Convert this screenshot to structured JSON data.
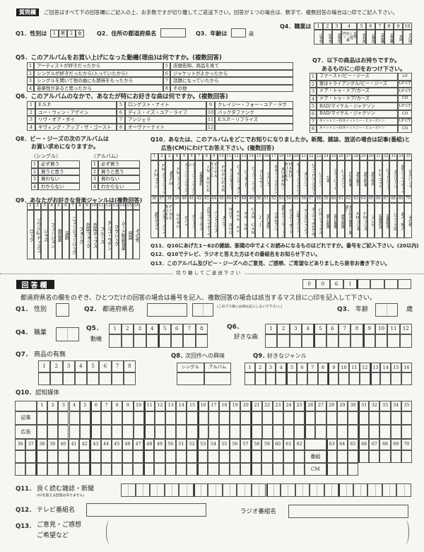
{
  "questions": {
    "header_label": "質問欄",
    "instruction": "ご回答はすべて下の回答欄にご記入の上、お手数ですが切り離してご返送下さい。回答が１つの場合は、数字で、複数回答の場合は○印でご記入下さい。",
    "q1": {
      "label": "Q1．性別は",
      "options": [
        "1",
        "男",
        "2",
        "女"
      ]
    },
    "q2": {
      "label": "Q2．住所の都道府県名"
    },
    "q3": {
      "label": "Q3．年齢は",
      "unit": "歳"
    },
    "q4": {
      "label": "Q4．職業は",
      "options": [
        {
          "n": "1",
          "t": "小学生"
        },
        {
          "n": "2",
          "t": "中学生"
        },
        {
          "n": "3",
          "t": "高校生"
        },
        {
          "n": "4",
          "t": "大学(短大・専門)"
        },
        {
          "n": "5",
          "t": "会社員"
        },
        {
          "n": "6",
          "t": "公務員"
        },
        {
          "n": "7",
          "t": "自由業"
        },
        {
          "n": "8",
          "t": "自営業"
        },
        {
          "n": "9",
          "t": "主婦"
        },
        {
          "n": "10",
          "t": "その他"
        }
      ]
    },
    "q5": {
      "title": "Q5．このアルバムをお買い上げになった動機(理由)は何ですか。(複数回答)",
      "items": [
        {
          "n": "1",
          "t": "アーティストが好きだったから"
        },
        {
          "n": "2",
          "t": "シングルが好きだったから(入っていたから)"
        },
        {
          "n": "3",
          "t": "シングルを聞いて他の曲にも期待をもったから"
        },
        {
          "n": "4",
          "t": "音楽性があると思ったから"
        },
        {
          "n": "5",
          "t": "店頭告知、商品を見て"
        },
        {
          "n": "6",
          "t": "ジャケットがよかったから"
        },
        {
          "n": "7",
          "t": "話題になっていたから"
        },
        {
          "n": "8",
          "t": "その他"
        }
      ]
    },
    "q6": {
      "title": "Q6．このアルバムのなかで、あなたが特にお好きな曲は何ですか。(複数回答)",
      "items": [
        {
          "n": "1",
          "t": "E.S.P."
        },
        {
          "n": "2",
          "t": "ユー・ウィン・アゲイン"
        },
        {
          "n": "3",
          "t": "リヴ・オア・ダイ"
        },
        {
          "n": "4",
          "t": "ギヴィング・アップ・ザ・ゴースト"
        },
        {
          "n": "5",
          "t": "ロンゲスト・ナイト"
        },
        {
          "n": "6",
          "t": "ディス・イズ・ユア・ライフ"
        },
        {
          "n": "7",
          "t": "アンジェラ"
        },
        {
          "n": "8",
          "t": "オーヴァーナイト"
        },
        {
          "n": "9",
          "t": "クレイジー・フォー・ユア・ラヴ"
        },
        {
          "n": "10",
          "t": "バックタファンク"
        },
        {
          "n": "11",
          "t": "E.S.P.－リプライズ"
        },
        {
          "n": "12",
          "t": ""
        }
      ]
    },
    "q7": {
      "title1": "Q7．以下の商品はお持ちですか。",
      "title2": "あるものに○印をおつけ下さい。",
      "items": [
        {
          "n": "1",
          "t": "ファースト/ビー・ジーズ",
          "f": "LP"
        },
        {
          "n": "2",
          "t": "愛はトライアングル/ビー・ジーズ",
          "f": "LP·CT"
        },
        {
          "n": "3",
          "t": "ドア・トゥ・ドア/カーズ",
          "f": "LP·CT"
        },
        {
          "n": "4",
          "t": "ドア・トゥ・ドア/カーズ",
          "f": "CD"
        },
        {
          "n": "5",
          "t": "BAD/マイケル・ジャクソン",
          "f": "LP·CT"
        },
        {
          "n": "6",
          "t": "BAD/マイケル・ジャクソン",
          "f": "CD"
        },
        {
          "n": "7",
          "t": "ホイットニーII/ホイットニー・ヒューストン",
          "f": "LP·CT"
        },
        {
          "n": "8",
          "t": "ホイットニーII/ホイットニー・ヒューストン",
          "f": "CD"
        }
      ]
    },
    "q8": {
      "title1": "Q8．ビー・ジーズの次のアルバムは",
      "title2": "お買い求めになりますか。",
      "single_label": "〈シングル〉",
      "album_label": "〈アルバム〉",
      "options": [
        {
          "n": "1",
          "t": "必ず買う"
        },
        {
          "n": "2",
          "t": "買うと思う"
        },
        {
          "n": "3",
          "t": "買わない"
        },
        {
          "n": "4",
          "t": "わからない"
        }
      ]
    },
    "q9": {
      "title": "Q9．あなたがお好きな音楽ジャンルは(複数回答)",
      "genres": [
        {
          "n": "1",
          "t": "ロック"
        },
        {
          "n": "2",
          "t": "ソウル&ディスコ"
        },
        {
          "n": "3",
          "t": "ジャズ"
        },
        {
          "n": "4",
          "t": "フュージョン"
        },
        {
          "n": "5",
          "t": "歌謡曲"
        },
        {
          "n": "6",
          "t": "演歌"
        },
        {
          "n": "7",
          "t": "ニューミュージック"
        },
        {
          "n": "8",
          "t": "フォーク"
        },
        {
          "n": "9",
          "t": "外国フォーク"
        },
        {
          "n": "10",
          "t": "外国ポップス"
        },
        {
          "n": "11",
          "t": "ブルース"
        },
        {
          "n": "12",
          "t": "タンゴ・ラテン"
        },
        {
          "n": "13",
          "t": "クラシック"
        },
        {
          "n": "14",
          "t": "ムード映画音楽"
        },
        {
          "n": "15",
          "t": "民謡"
        },
        {
          "n": "16",
          "t": "その他"
        }
      ]
    },
    "q10": {
      "title1": "Q10．あなたは、このアルバムをどこでお知りになりましたか。新聞、雑誌、放送の場合は記事(番組)と",
      "title2": "広告(CM)にわけてお答え下さい。(複数回答)",
      "media": [
        {
          "n": "1",
          "t": "FMファン"
        },
        {
          "n": "2",
          "t": "FMステーション"
        },
        {
          "n": "3",
          "t": "週刊FM"
        },
        {
          "n": "4",
          "t": "FMレコパル"
        },
        {
          "n": "5",
          "t": "ミュージックライフ"
        },
        {
          "n": "6",
          "t": "ミュージックマガジン"
        },
        {
          "n": "7",
          "t": "音楽専科"
        },
        {
          "n": "8",
          "t": "IN ROCK"
        },
        {
          "n": "9",
          "t": "VIVA ROCK"
        },
        {
          "n": "10",
          "t": "POPGEAR"
        },
        {
          "n": "11",
          "t": "ヤングギター"
        },
        {
          "n": "12",
          "t": "ロッキング・オン"
        },
        {
          "n": "13",
          "t": "ロッキンf"
        },
        {
          "n": "14",
          "t": "ロック・ショウ"
        },
        {
          "n": "15",
          "t": "プレイヤー"
        },
        {
          "n": "16",
          "t": "アドリブ"
        },
        {
          "n": "17",
          "t": "ギター・マガジン"
        },
        {
          "n": "18",
          "t": "BURRN!"
        },
        {
          "n": "19",
          "t": "HARD ROCKS"
        },
        {
          "n": "20",
          "t": "キーボードマガジン"
        },
        {
          "n": "21",
          "t": "オリコン"
        },
        {
          "n": "22",
          "t": "レコードマンスリー"
        },
        {
          "n": "23",
          "t": "レコジン"
        },
        {
          "n": "24",
          "t": "ぴあ"
        },
        {
          "n": "25",
          "t": "シティロード"
        },
        {
          "n": "26",
          "t": "Lマガジン"
        },
        {
          "n": "27",
          "t": "月刊明星"
        },
        {
          "n": "28",
          "t": "週刊朝日"
        },
        {
          "n": "29",
          "t": "週刊明星"
        },
        {
          "n": "30",
          "t": "週刊現代"
        },
        {
          "n": "31",
          "t": "TVガイド"
        },
        {
          "n": "32",
          "t": "ロードショー"
        },
        {
          "n": "33",
          "t": "スクリーン"
        },
        {
          "n": "34",
          "t": "週刊プレイボーイ"
        },
        {
          "n": "35",
          "t": "平凡パンチ"
        },
        {
          "n": "36",
          "t": "週刊ポスト"
        },
        {
          "n": "37",
          "t": "メンズ・ノンノ"
        },
        {
          "n": "38",
          "t": "FINE BOYS"
        },
        {
          "n": "39",
          "t": "GORO"
        },
        {
          "n": "40",
          "t": "ポパイ"
        },
        {
          "n": "41",
          "t": "オリーブ"
        },
        {
          "n": "42",
          "t": "ブルータス"
        },
        {
          "n": "43",
          "t": "月刊プレイボーイ"
        },
        {
          "n": "44",
          "t": "ペントハウス"
        },
        {
          "n": "45",
          "t": "スコラ"
        },
        {
          "n": "46",
          "t": "HOT DOG"
        },
        {
          "n": "47",
          "t": "non no"
        },
        {
          "n": "48",
          "t": "an an"
        },
        {
          "n": "49",
          "t": "CAN CAN"
        },
        {
          "n": "50",
          "t": "J・J"
        },
        {
          "n": "51",
          "t": "流行通信"
        },
        {
          "n": "52",
          "t": "プチセブン"
        },
        {
          "n": "53",
          "t": "週刊セブンティーン"
        },
        {
          "n": "54",
          "t": "ホリデーオート"
        },
        {
          "n": "55",
          "t": "少年マガジン"
        },
        {
          "n": "56",
          "t": "ヤングジャンプ"
        },
        {
          "n": "57",
          "t": "オーディオビデオ"
        },
        {
          "n": "58",
          "t": "CDジャーナル"
        },
        {
          "n": "59",
          "t": "朝日新聞"
        },
        {
          "n": "60",
          "t": "毎日新聞"
        },
        {
          "n": "61",
          "t": "読売新聞"
        },
        {
          "n": "62",
          "t": "その他の新聞(雑誌)"
        },
        {
          "n": "63",
          "t": "AMラジオ"
        },
        {
          "n": "64",
          "t": "FMラジオ"
        },
        {
          "n": "65",
          "t": "テレビ"
        },
        {
          "n": "66",
          "t": "有線放送"
        },
        {
          "n": "67",
          "t": "音楽喫茶"
        },
        {
          "n": "68",
          "t": "レコード店"
        },
        {
          "n": "69",
          "t": "友人・知人"
        },
        {
          "n": "70",
          "t": "その他"
        }
      ]
    },
    "q11": "Q11．Q10にあげた1－62の雑誌、新聞の中でよくお読みになるものはどれですか。番号をご記入下さい。(20以内)",
    "q12": "Q12．Q10でテレビ、ラジオと答えた方はその番組名をお知らせ下さい。",
    "q13": "Q13．このアルバム及びビー・ジーズへのご意見、ご感想、ご希望などありましたら是非お書き下さい。"
  },
  "cut_line": "切り離してご返送下さい",
  "answer": {
    "header_label": "回答欄",
    "code": [
      "0",
      "0",
      "6",
      "1",
      "",
      "",
      "",
      ""
    ],
    "instruction": "都道府県名の欄をのぞき、ひとつだけの回答の場合は番号を記入、複数回答の場合は該当するマス目に○印を記入して下さい。",
    "q1": {
      "num": "Q1．",
      "label": "性別"
    },
    "q2": {
      "num": "Q2．",
      "label": "都道府県名",
      "note": "(このマス目には何も記入しないで下さい。)"
    },
    "q3": {
      "num": "Q3．",
      "label": "年齢",
      "unit": "歳"
    },
    "q4": {
      "num": "Q4．",
      "label": "職業"
    },
    "q5": {
      "num": "Q5．",
      "label": "動機",
      "cols": [
        "1",
        "2",
        "3",
        "4",
        "5",
        "6",
        "7",
        "8"
      ]
    },
    "q6": {
      "num": "Q6．",
      "label": "好きな曲",
      "cols": [
        "1",
        "2",
        "3",
        "4",
        "5",
        "6",
        "7",
        "8",
        "9",
        "10",
        "11",
        "12"
      ]
    },
    "q7": {
      "num": "Q7．",
      "label": "商品の有無",
      "cols": [
        "1",
        "2",
        "3",
        "4",
        "5",
        "6",
        "7",
        "8"
      ]
    },
    "q8": {
      "num": "Q8．",
      "label": "次回作への興味",
      "cols": [
        "シングル",
        "アルバム"
      ]
    },
    "q9": {
      "num": "Q9．",
      "label": "好きなジャンル",
      "cols": [
        "1",
        "2",
        "3",
        "4",
        "5",
        "6",
        "7",
        "8",
        "9",
        "10",
        "11",
        "12",
        "13",
        "14",
        "15",
        "16"
      ]
    },
    "q10": {
      "num": "Q10．",
      "label": "認知媒体",
      "row_labels_top": [
        "記事",
        "広告"
      ],
      "row_labels_bottom": [
        "番組",
        "CM"
      ]
    },
    "q11": {
      "num": "Q11．",
      "label": "良く読む雑誌・新聞",
      "note": "(62を超える回答はありません)"
    },
    "q12": {
      "num": "Q12．",
      "tv_label": "テレビ番組名",
      "radio_label": "ラジオ番組名"
    },
    "q13": {
      "num": "Q13．",
      "label1": "ご意見・ご感想",
      "label2": "ご希望など"
    }
  }
}
